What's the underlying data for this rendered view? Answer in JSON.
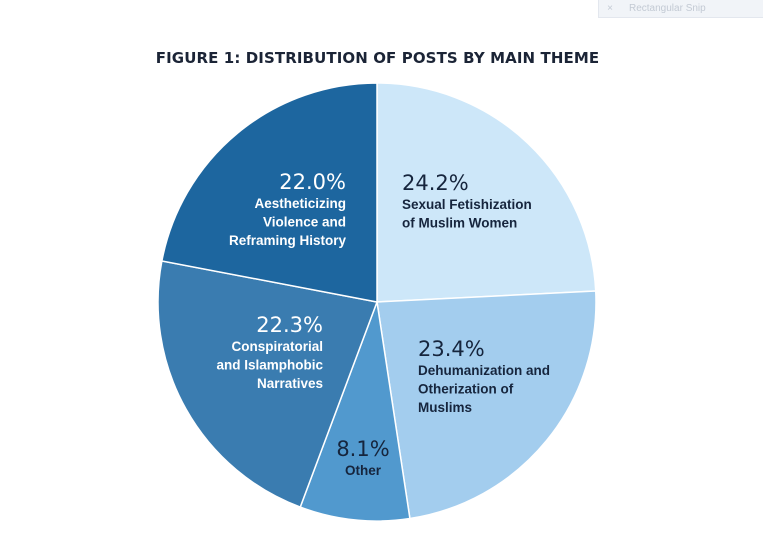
{
  "snip_toolbar": {
    "label": "Rectangular Snip",
    "close_glyph": "×"
  },
  "chart_data": {
    "type": "pie",
    "title": "FIGURE 1: DISTRIBUTION OF POSTS BY MAIN THEME",
    "legend": "none (labels inside slices)",
    "slices": [
      {
        "label": "Sexual Fetishization of Muslim Women",
        "label_lines": [
          "Sexual Fetishization",
          "of Muslim Women"
        ],
        "value": 24.2,
        "display": "24.2%",
        "color": "#cde7f9",
        "text_color": "#16253d"
      },
      {
        "label": "Dehumanization and Otherization of Muslims",
        "label_lines": [
          "Dehumanization and",
          "Otherization of",
          "Muslims"
        ],
        "value": 23.4,
        "display": "23.4%",
        "color": "#a3cdee",
        "text_color": "#16253d"
      },
      {
        "label": "Other",
        "label_lines": [
          "Other"
        ],
        "value": 8.1,
        "display": "8.1%",
        "color": "#5199ce",
        "text_color": "#16253d"
      },
      {
        "label": "Conspiratorial and Islamphobic Narratives",
        "label_lines": [
          "Conspiratorial",
          "and Islamphobic",
          "Narratives"
        ],
        "value": 22.3,
        "display": "22.3%",
        "color": "#3a7cb0",
        "text_color": "#ffffff"
      },
      {
        "label": "Aestheticizing Violence and Reframing History",
        "label_lines": [
          "Aestheticizing",
          "Violence and",
          "Reframing History"
        ],
        "value": 22.0,
        "display": "22.0%",
        "color": "#1d669f",
        "text_color": "#ffffff"
      }
    ]
  }
}
